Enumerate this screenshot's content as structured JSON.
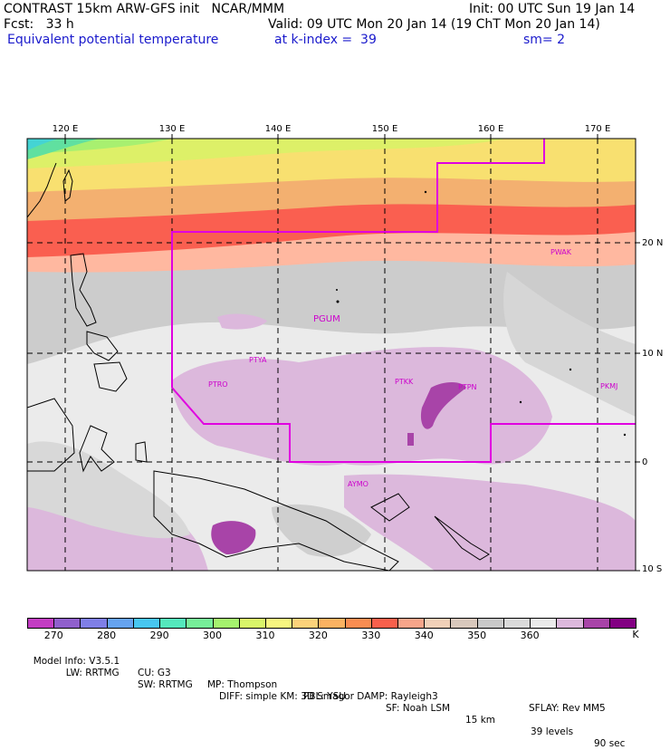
{
  "header": {
    "line1_left": "CONTRAST 15km ARW-GFS init   NCAR/MMM",
    "line1_right": "Init: 00 UTC Sun 19 Jan 14",
    "line2_left": "Fcst:   33 h",
    "line2_right": "Valid: 09 UTC Mon 20 Jan 14 (19 ChT Mon 20 Jan 14)",
    "field": "Equivalent potential temperature",
    "level": "at k-index =  39",
    "smoothing": "sm= 2"
  },
  "map": {
    "lon_labels": [
      "120 E",
      "130 E",
      "140 E",
      "150 E",
      "160 E",
      "170 E"
    ],
    "lat_labels": [
      "20 N",
      "10 N",
      "0",
      "10 S"
    ],
    "stations": [
      "PGUM",
      "PTYA",
      "PTRO",
      "PTKK",
      "PTPN",
      "PKMJ",
      "PWAK",
      "AYMO"
    ],
    "palette_bands": [
      "#cccccc",
      "#ffb8a0",
      "#fa5f50",
      "#f3b070",
      "#f8e070",
      "#ddf068",
      "#a8f070",
      "#60e0a0",
      "#44d4d4"
    ]
  },
  "colorbar": {
    "colors": [
      "#c33dc3",
      "#9060cc",
      "#7f7fe6",
      "#66a3ef",
      "#48c6f0",
      "#55e8bc",
      "#77ee99",
      "#a5f26e",
      "#d9f56a",
      "#f7f580",
      "#fcd27a",
      "#fbb262",
      "#f98d52",
      "#f8604c",
      "#f7a58a",
      "#f1d0b8",
      "#d8c8bc",
      "#c9c9c9",
      "#dadada",
      "#ebebeb",
      "#dcb8dc",
      "#a844a8",
      "#820082"
    ],
    "labels": [
      "270",
      "280",
      "290",
      "300",
      "310",
      "320",
      "330",
      "340",
      "350",
      "360",
      "K"
    ]
  },
  "model_info": {
    "line1": [
      "Model Info: V3.5.1",
      "CU: G3",
      "MP: Thompson",
      "PBL: YSU",
      "SF: Noah LSM",
      "15 km",
      "39 levels",
      "90 sec"
    ],
    "line2": [
      "LW: RRTMG",
      "SW: RRTMG",
      "DIFF: simple KM: 3D Smagor DAMP: Rayleigh3",
      "SFLAY: Rev MM5"
    ]
  }
}
